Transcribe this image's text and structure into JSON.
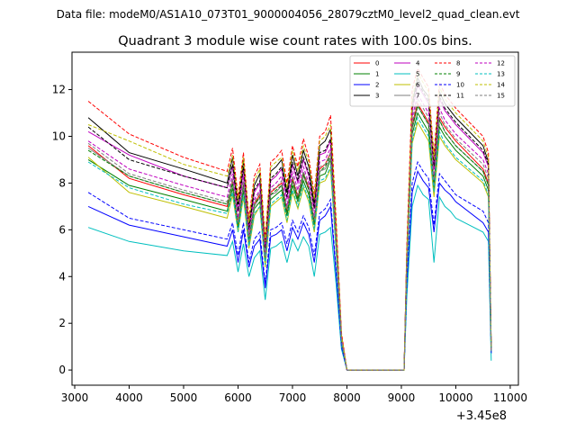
{
  "header": {
    "data_file": "Data file: modeM0/AS1A10_073T01_9000004056_28079cztM0_level2_quad_clean.evt"
  },
  "chart_data": {
    "type": "line",
    "title": "Quadrant 3 module wise count rates with 100.0s bins.",
    "xlabel": "",
    "ylabel": "",
    "x_offset_label": "+3.45e8",
    "xlim": [
      2950,
      11150
    ],
    "ylim": [
      -0.65,
      13.6
    ],
    "x_ticks": [
      3000,
      4000,
      5000,
      6000,
      7000,
      8000,
      9000,
      10000,
      11000
    ],
    "x_tick_labels": [
      "3000",
      "4000",
      "5000",
      "6000",
      "7000",
      "8000",
      "9000",
      "10000",
      "11000"
    ],
    "y_ticks": [
      0,
      2,
      4,
      6,
      8,
      10,
      12
    ],
    "y_tick_labels": [
      "0",
      "2",
      "4",
      "6",
      "8",
      "10",
      "12"
    ],
    "grid": false,
    "legend_position": "top-right",
    "x": [
      3250,
      4000,
      5000,
      5800,
      5900,
      6000,
      6100,
      6200,
      6300,
      6400,
      6500,
      6600,
      6700,
      6800,
      6900,
      7000,
      7100,
      7200,
      7300,
      7400,
      7500,
      7600,
      7700,
      7800,
      7900,
      8000,
      8100,
      9050,
      9100,
      9200,
      9300,
      9400,
      9500,
      9600,
      9700,
      9800,
      9900,
      10000,
      10500,
      10600,
      10650
    ],
    "series": [
      {
        "name": "0",
        "color": "#ff0000",
        "dash": "solid",
        "values": [
          9.6,
          8.2,
          7.5,
          7.0,
          8.1,
          6.3,
          8.0,
          5.6,
          7.1,
          7.5,
          4.8,
          7.6,
          7.8,
          8.0,
          6.8,
          8.2,
          7.4,
          8.4,
          7.8,
          6.4,
          8.6,
          8.8,
          9.3,
          5.5,
          1.3,
          0.0,
          0.0,
          0.0,
          4.5,
          10.5,
          11.4,
          11.0,
          10.6,
          8.0,
          10.8,
          10.4,
          10.1,
          9.8,
          8.6,
          8.0,
          0.8
        ]
      },
      {
        "name": "1",
        "color": "#008000",
        "dash": "solid",
        "values": [
          9.0,
          7.9,
          7.3,
          6.8,
          7.8,
          6.1,
          7.7,
          5.4,
          6.9,
          7.2,
          4.6,
          7.3,
          7.5,
          7.7,
          6.6,
          7.9,
          7.2,
          8.1,
          7.5,
          6.2,
          8.3,
          8.4,
          9.0,
          5.3,
          1.2,
          0.0,
          0.0,
          0.0,
          4.4,
          10.1,
          11.0,
          10.6,
          10.2,
          7.7,
          10.4,
          10.0,
          9.7,
          9.4,
          8.3,
          7.7,
          0.8
        ]
      },
      {
        "name": "2",
        "color": "#0000ff",
        "dash": "solid",
        "values": [
          7.0,
          6.2,
          5.7,
          5.3,
          6.0,
          4.6,
          6.0,
          4.4,
          5.3,
          5.6,
          3.5,
          5.7,
          5.8,
          6.0,
          5.1,
          6.1,
          5.6,
          6.3,
          5.8,
          4.6,
          6.4,
          6.6,
          7.0,
          4.1,
          1.0,
          0.0,
          0.0,
          0.0,
          3.5,
          7.6,
          8.5,
          8.1,
          7.8,
          5.9,
          8.0,
          7.7,
          7.5,
          7.2,
          6.3,
          5.9,
          0.7
        ]
      },
      {
        "name": "3",
        "color": "#000000",
        "dash": "solid",
        "values": [
          10.8,
          9.3,
          8.6,
          8.0,
          9.1,
          7.1,
          9.0,
          6.2,
          7.9,
          8.4,
          5.4,
          8.5,
          8.7,
          9.0,
          7.6,
          9.2,
          8.3,
          9.4,
          8.7,
          7.1,
          9.6,
          9.8,
          10.3,
          6.2,
          1.5,
          0.0,
          0.0,
          0.0,
          5.0,
          11.4,
          12.5,
          12.0,
          11.7,
          8.8,
          11.9,
          11.4,
          11.1,
          10.8,
          9.6,
          8.9,
          0.9
        ]
      },
      {
        "name": "4",
        "color": "#bf00bf",
        "dash": "solid",
        "values": [
          10.2,
          9.2,
          8.3,
          7.8,
          8.7,
          6.8,
          8.6,
          6.0,
          7.6,
          8.0,
          5.2,
          8.1,
          8.3,
          8.6,
          7.3,
          8.8,
          8.0,
          9.0,
          8.3,
          6.9,
          9.2,
          9.3,
          9.8,
          5.9,
          1.4,
          0.0,
          0.0,
          0.0,
          4.8,
          11.1,
          12.2,
          11.8,
          11.4,
          8.6,
          11.6,
          11.1,
          10.8,
          10.5,
          9.3,
          8.7,
          0.9
        ]
      },
      {
        "name": "5",
        "color": "#00bfbf",
        "dash": "solid",
        "values": [
          6.1,
          5.5,
          5.1,
          4.9,
          5.5,
          4.2,
          5.4,
          4.0,
          4.8,
          5.1,
          3.0,
          5.2,
          5.3,
          5.5,
          4.6,
          5.6,
          5.1,
          5.7,
          5.3,
          4.0,
          5.8,
          5.9,
          6.1,
          3.7,
          0.9,
          0.0,
          0.0,
          0.0,
          3.1,
          7.0,
          7.9,
          7.5,
          7.3,
          4.6,
          7.4,
          7.0,
          6.8,
          6.5,
          5.9,
          5.5,
          0.4
        ]
      },
      {
        "name": "6",
        "color": "#bfbf00",
        "dash": "solid",
        "values": [
          9.1,
          7.6,
          7.0,
          6.5,
          7.5,
          5.9,
          7.4,
          5.2,
          6.6,
          7.0,
          4.4,
          7.0,
          7.2,
          7.4,
          6.3,
          7.6,
          6.9,
          7.8,
          7.2,
          5.9,
          8.0,
          8.1,
          8.6,
          5.1,
          1.2,
          0.0,
          0.0,
          0.0,
          4.2,
          9.7,
          10.6,
          10.2,
          9.8,
          7.4,
          10.0,
          9.6,
          9.3,
          9.0,
          8.0,
          7.4,
          0.8
        ]
      },
      {
        "name": "7",
        "color": "#7f7f7f",
        "dash": "solid",
        "values": [
          9.5,
          8.3,
          7.6,
          7.1,
          8.0,
          6.2,
          7.9,
          5.5,
          7.0,
          7.4,
          4.7,
          7.5,
          7.6,
          7.9,
          6.7,
          8.1,
          7.3,
          8.3,
          7.7,
          6.3,
          8.5,
          8.6,
          9.1,
          5.4,
          1.3,
          0.0,
          0.0,
          0.0,
          4.5,
          10.3,
          11.3,
          10.9,
          10.5,
          7.9,
          10.7,
          10.2,
          9.9,
          9.6,
          8.5,
          7.9,
          0.8
        ]
      },
      {
        "name": "8",
        "color": "#ff0000",
        "dash": "dashed",
        "values": [
          11.5,
          10.1,
          9.1,
          8.5,
          9.5,
          7.4,
          9.3,
          6.5,
          8.3,
          8.8,
          5.6,
          8.9,
          9.1,
          9.4,
          8.0,
          9.6,
          8.7,
          9.9,
          9.1,
          7.5,
          10.0,
          10.2,
          10.9,
          6.5,
          1.6,
          0.0,
          0.0,
          0.0,
          5.3,
          12.0,
          12.9,
          12.5,
          12.1,
          9.2,
          12.3,
          11.8,
          11.5,
          11.2,
          10.0,
          9.3,
          0.9
        ]
      },
      {
        "name": "9",
        "color": "#008000",
        "dash": "dashed",
        "values": [
          9.4,
          8.3,
          7.6,
          7.1,
          8.0,
          6.2,
          8.0,
          5.6,
          7.1,
          7.4,
          4.7,
          7.5,
          7.7,
          7.9,
          6.7,
          8.1,
          7.3,
          8.4,
          7.7,
          6.3,
          8.5,
          8.7,
          9.2,
          5.4,
          1.3,
          0.0,
          0.0,
          0.0,
          4.5,
          10.4,
          11.3,
          10.9,
          10.5,
          8.0,
          10.7,
          10.2,
          9.9,
          9.6,
          8.5,
          7.9,
          0.8
        ]
      },
      {
        "name": "10",
        "color": "#0000ff",
        "dash": "dashed",
        "values": [
          7.6,
          6.5,
          6.0,
          5.6,
          6.3,
          4.9,
          6.3,
          4.6,
          5.6,
          5.9,
          3.7,
          6.0,
          6.1,
          6.3,
          5.4,
          6.4,
          5.9,
          6.6,
          6.1,
          4.9,
          6.7,
          6.9,
          7.3,
          4.3,
          1.0,
          0.0,
          0.0,
          0.0,
          3.7,
          8.0,
          8.9,
          8.5,
          8.2,
          6.2,
          8.4,
          8.1,
          7.8,
          7.5,
          6.8,
          6.3,
          0.7
        ]
      },
      {
        "name": "11",
        "color": "#000000",
        "dash": "dashed",
        "values": [
          10.4,
          9.0,
          8.3,
          7.8,
          8.8,
          6.8,
          8.7,
          6.0,
          7.7,
          8.1,
          5.2,
          8.2,
          8.4,
          8.7,
          7.4,
          8.9,
          8.1,
          9.1,
          8.4,
          6.9,
          9.3,
          9.4,
          9.9,
          6.0,
          1.4,
          0.0,
          0.0,
          0.0,
          4.9,
          11.2,
          12.3,
          11.9,
          11.5,
          8.7,
          11.7,
          11.2,
          10.9,
          10.6,
          9.4,
          8.8,
          0.9
        ]
      },
      {
        "name": "12",
        "color": "#bf00bf",
        "dash": "dashed",
        "values": [
          9.8,
          8.6,
          7.9,
          7.4,
          8.4,
          6.5,
          8.3,
          5.8,
          7.3,
          7.7,
          4.9,
          7.8,
          8.0,
          8.3,
          7.0,
          8.5,
          7.7,
          8.7,
          8.0,
          6.6,
          8.9,
          9.0,
          9.5,
          5.7,
          1.4,
          0.0,
          0.0,
          0.0,
          4.7,
          10.8,
          11.8,
          11.4,
          11.0,
          8.3,
          11.2,
          10.7,
          10.4,
          10.1,
          9.0,
          8.4,
          0.8
        ]
      },
      {
        "name": "13",
        "color": "#00bfbf",
        "dash": "dashed",
        "values": [
          8.9,
          7.8,
          7.1,
          6.7,
          7.6,
          5.9,
          7.5,
          5.3,
          6.7,
          7.0,
          4.5,
          7.1,
          7.3,
          7.5,
          6.4,
          7.7,
          7.0,
          7.9,
          7.3,
          6.0,
          8.1,
          8.2,
          8.7,
          5.2,
          1.2,
          0.0,
          0.0,
          0.0,
          4.3,
          9.8,
          10.8,
          10.4,
          10.0,
          7.6,
          10.2,
          9.7,
          9.4,
          9.1,
          8.1,
          7.5,
          0.8
        ]
      },
      {
        "name": "14",
        "color": "#bfbf00",
        "dash": "dashed",
        "values": [
          10.5,
          9.8,
          8.8,
          8.3,
          9.2,
          7.2,
          9.1,
          6.3,
          8.1,
          8.6,
          5.5,
          8.7,
          8.9,
          9.1,
          7.8,
          9.4,
          8.5,
          9.6,
          8.9,
          7.3,
          9.8,
          10.0,
          10.5,
          6.3,
          1.5,
          0.0,
          0.0,
          0.0,
          5.1,
          11.6,
          12.7,
          12.3,
          11.9,
          9.0,
          12.1,
          11.6,
          11.3,
          11.0,
          9.8,
          9.1,
          0.9
        ]
      },
      {
        "name": "15",
        "color": "#7f7f7f",
        "dash": "dashed",
        "values": [
          9.7,
          8.4,
          7.7,
          7.2,
          8.2,
          6.3,
          8.1,
          5.7,
          7.2,
          7.6,
          4.8,
          7.7,
          7.8,
          8.1,
          6.9,
          8.3,
          7.5,
          8.5,
          7.9,
          6.4,
          8.7,
          8.8,
          9.3,
          5.6,
          1.3,
          0.0,
          0.0,
          0.0,
          4.6,
          10.6,
          11.6,
          11.2,
          10.8,
          8.1,
          11.0,
          10.5,
          10.2,
          9.9,
          8.8,
          8.2,
          0.8
        ]
      }
    ]
  }
}
